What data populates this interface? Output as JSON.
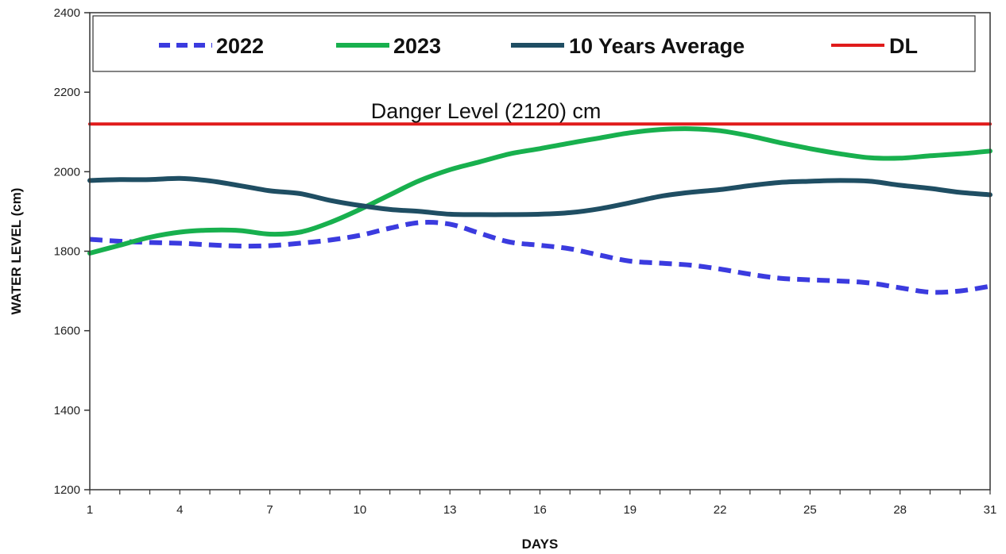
{
  "chart_data": {
    "type": "line",
    "title": "",
    "xlabel": "DAYS",
    "ylabel": "WATER LEVEL (cm)",
    "xlim": [
      1,
      31
    ],
    "ylim": [
      1200,
      2400
    ],
    "x_ticks": [
      1,
      4,
      7,
      10,
      13,
      16,
      19,
      22,
      25,
      28,
      31
    ],
    "y_ticks": [
      1200,
      1400,
      1600,
      1800,
      2000,
      2200,
      2400
    ],
    "legend_position": "top",
    "x": [
      1,
      2,
      3,
      4,
      5,
      6,
      7,
      8,
      9,
      10,
      11,
      12,
      13,
      14,
      15,
      16,
      17,
      18,
      19,
      20,
      21,
      22,
      23,
      24,
      25,
      26,
      27,
      28,
      29,
      30,
      31
    ],
    "series": [
      {
        "name": "2022",
        "color": "#3b3bdf",
        "style": "dashed",
        "values": [
          1830,
          1825,
          1822,
          1820,
          1816,
          1813,
          1814,
          1820,
          1828,
          1840,
          1858,
          1872,
          1868,
          1845,
          1823,
          1815,
          1806,
          1790,
          1775,
          1770,
          1765,
          1755,
          1742,
          1732,
          1728,
          1725,
          1720,
          1708,
          1697,
          1700,
          1712
        ]
      },
      {
        "name": "2023",
        "color": "#18b04e",
        "style": "solid",
        "values": [
          1795,
          1815,
          1835,
          1848,
          1853,
          1852,
          1843,
          1848,
          1872,
          1905,
          1942,
          1978,
          2005,
          2025,
          2045,
          2058,
          2072,
          2085,
          2098,
          2106,
          2108,
          2103,
          2090,
          2073,
          2058,
          2045,
          2035,
          2034,
          2040,
          2045,
          2052
        ]
      },
      {
        "name": "10 Years Average",
        "color": "#1f4e63",
        "style": "solid",
        "values": [
          1978,
          1980,
          1980,
          1983,
          1977,
          1965,
          1952,
          1945,
          1928,
          1915,
          1905,
          1900,
          1893,
          1892,
          1892,
          1893,
          1897,
          1907,
          1922,
          1938,
          1948,
          1955,
          1965,
          1973,
          1976,
          1978,
          1976,
          1966,
          1958,
          1948,
          1942
        ]
      },
      {
        "name": "DL",
        "color": "#e01b1b",
        "style": "solid",
        "values": [
          2120,
          2120,
          2120,
          2120,
          2120,
          2120,
          2120,
          2120,
          2120,
          2120,
          2120,
          2120,
          2120,
          2120,
          2120,
          2120,
          2120,
          2120,
          2120,
          2120,
          2120,
          2120,
          2120,
          2120,
          2120,
          2120,
          2120,
          2120,
          2120,
          2120,
          2120
        ]
      }
    ],
    "annotation": {
      "text": "Danger Level (2120) cm",
      "x": 10.5,
      "y": 2120
    }
  }
}
